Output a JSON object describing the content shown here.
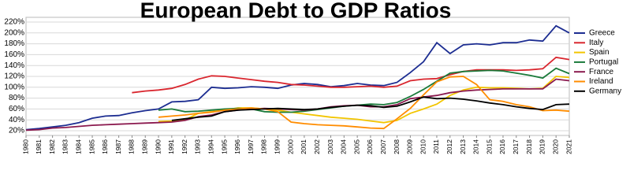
{
  "chart_data": {
    "type": "line",
    "title": "European Debt to GDP Ratios",
    "x": [
      1980,
      1981,
      1982,
      1983,
      1984,
      1985,
      1986,
      1987,
      1988,
      1989,
      1990,
      1991,
      1992,
      1993,
      1994,
      1995,
      1996,
      1997,
      1998,
      1999,
      2000,
      2001,
      2002,
      2003,
      2004,
      2005,
      2006,
      2007,
      2008,
      2009,
      2010,
      2011,
      2012,
      2013,
      2014,
      2015,
      2016,
      2017,
      2018,
      2019,
      2020,
      2021
    ],
    "xlim": [
      1980,
      2021
    ],
    "ylim": [
      20,
      220
    ],
    "yticks": [
      {
        "value": 20,
        "label": "20%"
      },
      {
        "value": 40,
        "label": "40%"
      },
      {
        "value": 60,
        "label": "60%"
      },
      {
        "value": 80,
        "label": "80%"
      },
      {
        "value": 100,
        "label": "100%"
      },
      {
        "value": 120,
        "label": "120%"
      },
      {
        "value": 140,
        "label": "140%"
      },
      {
        "value": 160,
        "label": "160%"
      },
      {
        "value": 180,
        "label": "180%"
      },
      {
        "value": 200,
        "label": "200%"
      },
      {
        "value": 220,
        "label": "220%"
      }
    ],
    "grid": true,
    "series": [
      {
        "name": "Greece",
        "color": "#1c2d91",
        "values": [
          22,
          24,
          27,
          30,
          35,
          43,
          47,
          48,
          53,
          57,
          60,
          73,
          74,
          77,
          100,
          98,
          99,
          101,
          100,
          98,
          104,
          107,
          105,
          101,
          103,
          107,
          104,
          103,
          109,
          127,
          147,
          182,
          162,
          178,
          180,
          178,
          182,
          182,
          187,
          185,
          213,
          200
        ]
      },
      {
        "name": "Italy",
        "color": "#d9262e",
        "values": [
          null,
          null,
          null,
          null,
          null,
          null,
          null,
          null,
          90,
          93,
          95,
          98,
          105,
          115,
          121,
          120,
          117,
          114,
          111,
          109,
          105,
          104,
          102,
          100,
          100,
          101,
          102,
          100,
          102,
          112,
          115,
          116,
          123,
          129,
          132,
          132,
          132,
          131,
          132,
          134,
          155,
          151
        ]
      },
      {
        "name": "Spain",
        "color": "#f2c500",
        "values": [
          null,
          null,
          null,
          null,
          null,
          null,
          null,
          null,
          null,
          null,
          37,
          38,
          40,
          52,
          55,
          58,
          62,
          62,
          60,
          58,
          54,
          51,
          48,
          45,
          43,
          41,
          38,
          35,
          39,
          52,
          60,
          69,
          85,
          95,
          100,
          99,
          99,
          98,
          97,
          98,
          120,
          118
        ]
      },
      {
        "name": "Portugal",
        "color": "#1a7a3a",
        "values": [
          null,
          null,
          null,
          null,
          null,
          null,
          null,
          null,
          null,
          null,
          58,
          60,
          55,
          56,
          58,
          60,
          61,
          60,
          55,
          54,
          54,
          56,
          59,
          62,
          65,
          67,
          69,
          68,
          72,
          83,
          96,
          111,
          126,
          129,
          130,
          131,
          130,
          126,
          122,
          117,
          135,
          125
        ]
      },
      {
        "name": "France",
        "color": "#8b1a4f",
        "values": [
          21,
          22,
          25,
          26,
          28,
          30,
          31,
          32,
          33,
          34,
          35,
          36,
          39,
          46,
          49,
          55,
          58,
          60,
          61,
          60,
          59,
          58,
          60,
          64,
          66,
          67,
          64,
          64,
          68,
          79,
          82,
          85,
          90,
          93,
          95,
          96,
          97,
          97,
          97,
          97,
          115,
          112
        ]
      },
      {
        "name": "Ireland",
        "color": "#ff8c00",
        "values": [
          null,
          null,
          null,
          null,
          null,
          null,
          null,
          null,
          null,
          null,
          45,
          47,
          49,
          52,
          54,
          58,
          60,
          62,
          60,
          55,
          36,
          33,
          31,
          30,
          29,
          27,
          25,
          24,
          42,
          61,
          86,
          110,
          119,
          120,
          105,
          77,
          74,
          68,
          64,
          57,
          58,
          56
        ]
      },
      {
        "name": "Germany",
        "color": "#000000",
        "values": [
          null,
          null,
          null,
          null,
          null,
          null,
          null,
          null,
          null,
          null,
          null,
          39,
          42,
          45,
          47,
          55,
          58,
          59,
          60,
          61,
          60,
          59,
          60,
          63,
          65,
          67,
          66,
          63,
          65,
          73,
          82,
          79,
          80,
          78,
          75,
          71,
          68,
          64,
          61,
          59,
          68,
          69
        ]
      }
    ]
  }
}
